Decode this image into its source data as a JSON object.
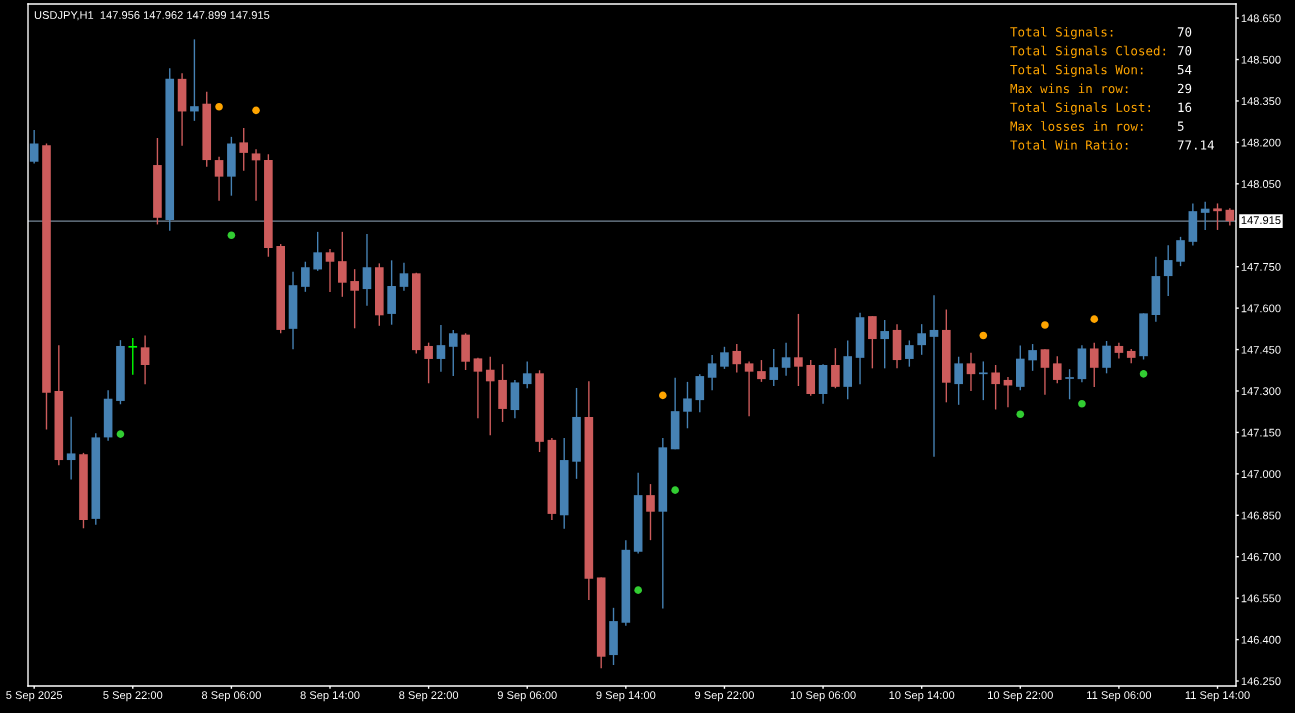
{
  "chart_data": {
    "type": "candlestick",
    "title": "USDJPY,H1  147.956 147.962 147.899 147.915",
    "categories": [
      "5 Sep 2025",
      null,
      null,
      null,
      null,
      null,
      null,
      null,
      "5 Sep 22:00",
      null,
      null,
      null,
      null,
      null,
      null,
      null,
      "8 Sep 06:00",
      null,
      null,
      null,
      null,
      null,
      null,
      null,
      "8 Sep 14:00",
      null,
      null,
      null,
      null,
      null,
      null,
      null,
      "8 Sep 22:00",
      null,
      null,
      null,
      null,
      null,
      null,
      null,
      "9 Sep 06:00",
      null,
      null,
      null,
      null,
      null,
      null,
      null,
      "9 Sep 14:00",
      null,
      null,
      null,
      null,
      null,
      null,
      null,
      "9 Sep 22:00",
      null,
      null,
      null,
      null,
      null,
      null,
      null,
      "10 Sep 06:00",
      null,
      null,
      null,
      null,
      null,
      null,
      null,
      "10 Sep 14:00",
      null,
      null,
      null,
      null,
      null,
      null,
      null,
      "10 Sep 22:00",
      null,
      null,
      null,
      null,
      null,
      null,
      null,
      "11 Sep 06:00",
      null,
      null,
      null,
      null,
      null,
      null,
      null,
      "11 Sep 14:00",
      null
    ],
    "ohlc": [
      [
        148.13,
        148.245,
        148.124,
        148.196
      ],
      [
        148.19,
        148.196,
        147.161,
        147.294
      ],
      [
        147.3,
        147.466,
        147.031,
        147.05
      ],
      [
        147.05,
        147.207,
        146.98,
        147.074
      ],
      [
        147.071,
        147.076,
        146.803,
        146.833
      ],
      [
        146.837,
        147.147,
        146.816,
        147.132
      ],
      [
        147.132,
        147.303,
        147.12,
        147.272
      ],
      [
        147.264,
        147.484,
        147.252,
        147.463
      ],
      [
        147.46,
        147.492,
        147.359,
        147.46
      ],
      [
        147.458,
        147.501,
        147.324,
        147.394
      ],
      [
        148.118,
        148.216,
        147.903,
        147.927
      ],
      [
        147.919,
        148.468,
        147.88,
        148.43
      ],
      [
        148.43,
        148.45,
        148.188,
        148.312
      ],
      [
        148.312,
        148.573,
        148.278,
        148.331
      ],
      [
        148.34,
        148.383,
        148.112,
        148.136
      ],
      [
        148.136,
        148.148,
        147.989,
        148.076
      ],
      [
        148.076,
        148.22,
        148.007,
        148.196
      ],
      [
        148.2,
        148.252,
        148.097,
        148.162
      ],
      [
        148.16,
        148.175,
        147.989,
        148.135
      ],
      [
        148.136,
        148.157,
        147.786,
        147.818
      ],
      [
        147.825,
        147.832,
        147.509,
        147.521
      ],
      [
        147.525,
        147.732,
        147.451,
        147.683
      ],
      [
        147.677,
        147.768,
        147.659,
        147.748
      ],
      [
        147.74,
        147.876,
        147.735,
        147.802
      ],
      [
        147.802,
        147.814,
        147.658,
        147.768
      ],
      [
        147.77,
        147.876,
        147.641,
        147.692
      ],
      [
        147.698,
        147.741,
        147.527,
        147.663
      ],
      [
        147.669,
        147.868,
        147.609,
        147.748
      ],
      [
        147.748,
        147.762,
        147.536,
        147.574
      ],
      [
        147.579,
        147.773,
        147.54,
        147.68
      ],
      [
        147.677,
        147.764,
        147.663,
        147.726
      ],
      [
        147.726,
        147.728,
        147.436,
        147.448
      ],
      [
        147.463,
        147.475,
        147.328,
        147.416
      ],
      [
        147.416,
        147.539,
        147.37,
        147.466
      ],
      [
        147.46,
        147.521,
        147.354,
        147.509
      ],
      [
        147.504,
        147.509,
        147.376,
        147.406
      ],
      [
        147.418,
        147.42,
        147.201,
        147.37
      ],
      [
        147.377,
        147.424,
        147.14,
        147.335
      ],
      [
        147.34,
        147.397,
        147.188,
        147.235
      ],
      [
        147.231,
        147.34,
        147.201,
        147.331
      ],
      [
        147.325,
        147.407,
        147.31,
        147.364
      ],
      [
        147.364,
        147.375,
        147.079,
        147.116
      ],
      [
        147.123,
        147.13,
        146.833,
        146.855
      ],
      [
        146.85,
        147.13,
        146.801,
        147.05
      ],
      [
        147.044,
        147.311,
        146.982,
        147.206
      ],
      [
        147.206,
        147.335,
        146.543,
        146.62
      ],
      [
        146.625,
        146.625,
        146.296,
        146.338
      ],
      [
        146.344,
        146.515,
        146.308,
        146.467
      ],
      [
        146.461,
        146.76,
        146.45,
        146.725
      ],
      [
        146.718,
        147.004,
        146.712,
        146.923
      ],
      [
        146.923,
        146.963,
        146.76,
        146.863
      ],
      [
        146.863,
        147.13,
        146.513,
        147.096
      ],
      [
        147.089,
        147.348,
        147.089,
        147.227
      ],
      [
        147.225,
        147.333,
        147.165,
        147.273
      ],
      [
        147.267,
        147.361,
        147.223,
        147.354
      ],
      [
        147.348,
        147.43,
        147.303,
        147.4
      ],
      [
        147.388,
        147.46,
        147.38,
        147.44
      ],
      [
        147.445,
        147.47,
        147.367,
        147.397
      ],
      [
        147.4,
        147.407,
        147.209,
        147.37
      ],
      [
        147.372,
        147.412,
        147.333,
        147.343
      ],
      [
        147.34,
        147.452,
        147.318,
        147.386
      ],
      [
        147.384,
        147.475,
        147.355,
        147.422
      ],
      [
        147.422,
        147.579,
        147.318,
        147.388
      ],
      [
        147.394,
        147.412,
        147.283,
        147.289
      ],
      [
        147.289,
        147.397,
        147.254,
        147.394
      ],
      [
        147.394,
        147.455,
        147.31,
        147.315
      ],
      [
        147.315,
        147.483,
        147.27,
        147.426
      ],
      [
        147.42,
        147.583,
        147.324,
        147.567
      ],
      [
        147.571,
        147.571,
        147.382,
        147.488
      ],
      [
        147.488,
        147.557,
        147.382,
        147.517
      ],
      [
        147.521,
        147.542,
        147.382,
        147.412
      ],
      [
        147.416,
        147.483,
        147.388,
        147.466
      ],
      [
        147.466,
        147.542,
        147.431,
        147.509
      ],
      [
        147.496,
        147.647,
        147.062,
        147.521
      ],
      [
        147.521,
        147.595,
        147.259,
        147.33
      ],
      [
        147.325,
        147.424,
        147.25,
        147.4
      ],
      [
        147.4,
        147.438,
        147.3,
        147.361
      ],
      [
        147.364,
        147.407,
        147.267,
        147.366
      ],
      [
        147.367,
        147.394,
        147.233,
        147.325
      ],
      [
        147.34,
        147.351,
        147.241,
        147.32
      ],
      [
        147.315,
        147.465,
        147.303,
        147.417
      ],
      [
        147.411,
        147.47,
        147.373,
        147.448
      ],
      [
        147.451,
        147.451,
        147.286,
        147.384
      ],
      [
        147.4,
        147.426,
        147.328,
        147.34
      ],
      [
        147.347,
        147.379,
        147.27,
        147.349
      ],
      [
        147.343,
        147.466,
        147.332,
        147.454
      ],
      [
        147.454,
        147.475,
        147.314,
        147.384
      ],
      [
        147.384,
        147.481,
        147.364,
        147.464
      ],
      [
        147.463,
        147.475,
        147.418,
        147.438
      ],
      [
        147.445,
        147.452,
        147.4,
        147.42
      ],
      [
        147.426,
        147.581,
        147.414,
        147.581
      ],
      [
        147.575,
        147.786,
        147.551,
        147.716
      ],
      [
        147.716,
        147.828,
        147.644,
        147.774
      ],
      [
        147.768,
        147.858,
        147.752,
        147.846
      ],
      [
        147.84,
        147.979,
        147.827,
        147.951
      ],
      [
        147.945,
        147.985,
        147.883,
        147.96
      ],
      [
        147.961,
        147.979,
        147.883,
        147.951
      ],
      [
        147.956,
        147.962,
        147.899,
        147.915
      ]
    ],
    "colors": [
      "#4682b4",
      "#cd5c5c",
      "#cd5c5c",
      "#4682b4",
      "#cd5c5c",
      "#4682b4",
      "#4682b4",
      "#4682b4",
      "#00ff00",
      "#cd5c5c",
      "#cd5c5c",
      "#4682b4",
      "#cd5c5c",
      "#4682b4",
      "#cd5c5c",
      "#cd5c5c",
      "#4682b4",
      "#cd5c5c",
      "#cd5c5c",
      "#cd5c5c",
      "#cd5c5c",
      "#4682b4",
      "#4682b4",
      "#4682b4",
      "#cd5c5c",
      "#cd5c5c",
      "#cd5c5c",
      "#4682b4",
      "#cd5c5c",
      "#4682b4",
      "#4682b4",
      "#cd5c5c",
      "#cd5c5c",
      "#4682b4",
      "#4682b4",
      "#cd5c5c",
      "#cd5c5c",
      "#cd5c5c",
      "#cd5c5c",
      "#4682b4",
      "#4682b4",
      "#cd5c5c",
      "#cd5c5c",
      "#4682b4",
      "#4682b4",
      "#cd5c5c",
      "#cd5c5c",
      "#4682b4",
      "#4682b4",
      "#4682b4",
      "#cd5c5c",
      "#4682b4",
      "#4682b4",
      "#4682b4",
      "#4682b4",
      "#4682b4",
      "#4682b4",
      "#cd5c5c",
      "#cd5c5c",
      "#cd5c5c",
      "#4682b4",
      "#4682b4",
      "#cd5c5c",
      "#cd5c5c",
      "#4682b4",
      "#cd5c5c",
      "#4682b4",
      "#4682b4",
      "#cd5c5c",
      "#4682b4",
      "#cd5c5c",
      "#4682b4",
      "#4682b4",
      "#4682b4",
      "#cd5c5c",
      "#4682b4",
      "#cd5c5c",
      "#4682b4",
      "#cd5c5c",
      "#cd5c5c",
      "#4682b4",
      "#4682b4",
      "#cd5c5c",
      "#cd5c5c",
      "#4682b4",
      "#4682b4",
      "#cd5c5c",
      "#4682b4",
      "#cd5c5c",
      "#cd5c5c",
      "#4682b4",
      "#4682b4",
      "#4682b4",
      "#4682b4",
      "#4682b4",
      "#4682b4",
      "#cd5c5c",
      "#cd5c5c"
    ],
    "series": [
      {
        "type": "scatter",
        "color": "#ffa500",
        "marker": "circle",
        "values": [
          null,
          null,
          null,
          null,
          null,
          null,
          null,
          null,
          null,
          null,
          null,
          null,
          null,
          null,
          null,
          148.329,
          null,
          null,
          148.316,
          null,
          null,
          null,
          null,
          null,
          null,
          null,
          null,
          null,
          null,
          null,
          null,
          null,
          null,
          null,
          null,
          null,
          null,
          null,
          null,
          null,
          null,
          null,
          null,
          null,
          null,
          null,
          null,
          null,
          null,
          null,
          null,
          147.284,
          null,
          null,
          null,
          null,
          null,
          null,
          null,
          null,
          null,
          null,
          null,
          null,
          null,
          null,
          null,
          null,
          null,
          null,
          null,
          null,
          null,
          null,
          null,
          null,
          null,
          147.501,
          null,
          null,
          null,
          null,
          147.539,
          null,
          null,
          null,
          147.56,
          null,
          null,
          null,
          null,
          null,
          null,
          null,
          null,
          null,
          null,
          null
        ]
      },
      {
        "type": "scatter",
        "color": "#32cd32",
        "marker": "circle",
        "values": [
          null,
          null,
          null,
          null,
          null,
          null,
          null,
          147.144,
          null,
          null,
          null,
          null,
          null,
          null,
          null,
          null,
          147.864,
          null,
          null,
          null,
          null,
          null,
          null,
          null,
          null,
          null,
          null,
          null,
          null,
          null,
          null,
          null,
          null,
          null,
          null,
          null,
          null,
          null,
          null,
          null,
          null,
          null,
          null,
          null,
          null,
          null,
          null,
          null,
          null,
          146.579,
          null,
          null,
          146.941,
          null,
          null,
          null,
          null,
          null,
          null,
          null,
          null,
          null,
          null,
          null,
          null,
          null,
          null,
          null,
          null,
          null,
          null,
          null,
          null,
          null,
          null,
          null,
          null,
          null,
          null,
          null,
          147.216,
          null,
          null,
          null,
          null,
          147.254,
          null,
          null,
          null,
          null,
          147.362,
          null,
          null,
          null,
          null,
          null,
          null,
          null
        ]
      }
    ],
    "ylim": [
      146.232,
      148.701
    ],
    "yticks": [
      {
        "value": 148.65,
        "label": "148.650"
      },
      {
        "value": 148.5,
        "label": "148.500"
      },
      {
        "value": 148.35,
        "label": "148.350"
      },
      {
        "value": 148.2,
        "label": "148.200"
      },
      {
        "value": 148.05,
        "label": "148.050"
      },
      {
        "value": 147.75,
        "label": "147.750"
      },
      {
        "value": 147.6,
        "label": "147.600"
      },
      {
        "value": 147.45,
        "label": "147.450"
      },
      {
        "value": 147.3,
        "label": "147.300"
      },
      {
        "value": 147.15,
        "label": "147.150"
      },
      {
        "value": 147.0,
        "label": "147.000"
      },
      {
        "value": 146.85,
        "label": "146.850"
      },
      {
        "value": 146.7,
        "label": "146.700"
      },
      {
        "value": 146.55,
        "label": "146.550"
      },
      {
        "value": 146.4,
        "label": "146.400"
      },
      {
        "value": 146.25,
        "label": "146.250"
      }
    ],
    "ref_lines": [
      {
        "axis": "y",
        "value": 147.915,
        "label": "147.915",
        "color": "#778899"
      }
    ],
    "annotations": [
      "Total Signals:",
      "70",
      "Total Signals Closed:",
      "70",
      "Total Signals Won:",
      "54",
      "Max wins in row:",
      "29",
      "Total Signals Lost:",
      "16",
      "Max losses in row:",
      "5",
      "Total Win Ratio:",
      "77.14"
    ]
  }
}
